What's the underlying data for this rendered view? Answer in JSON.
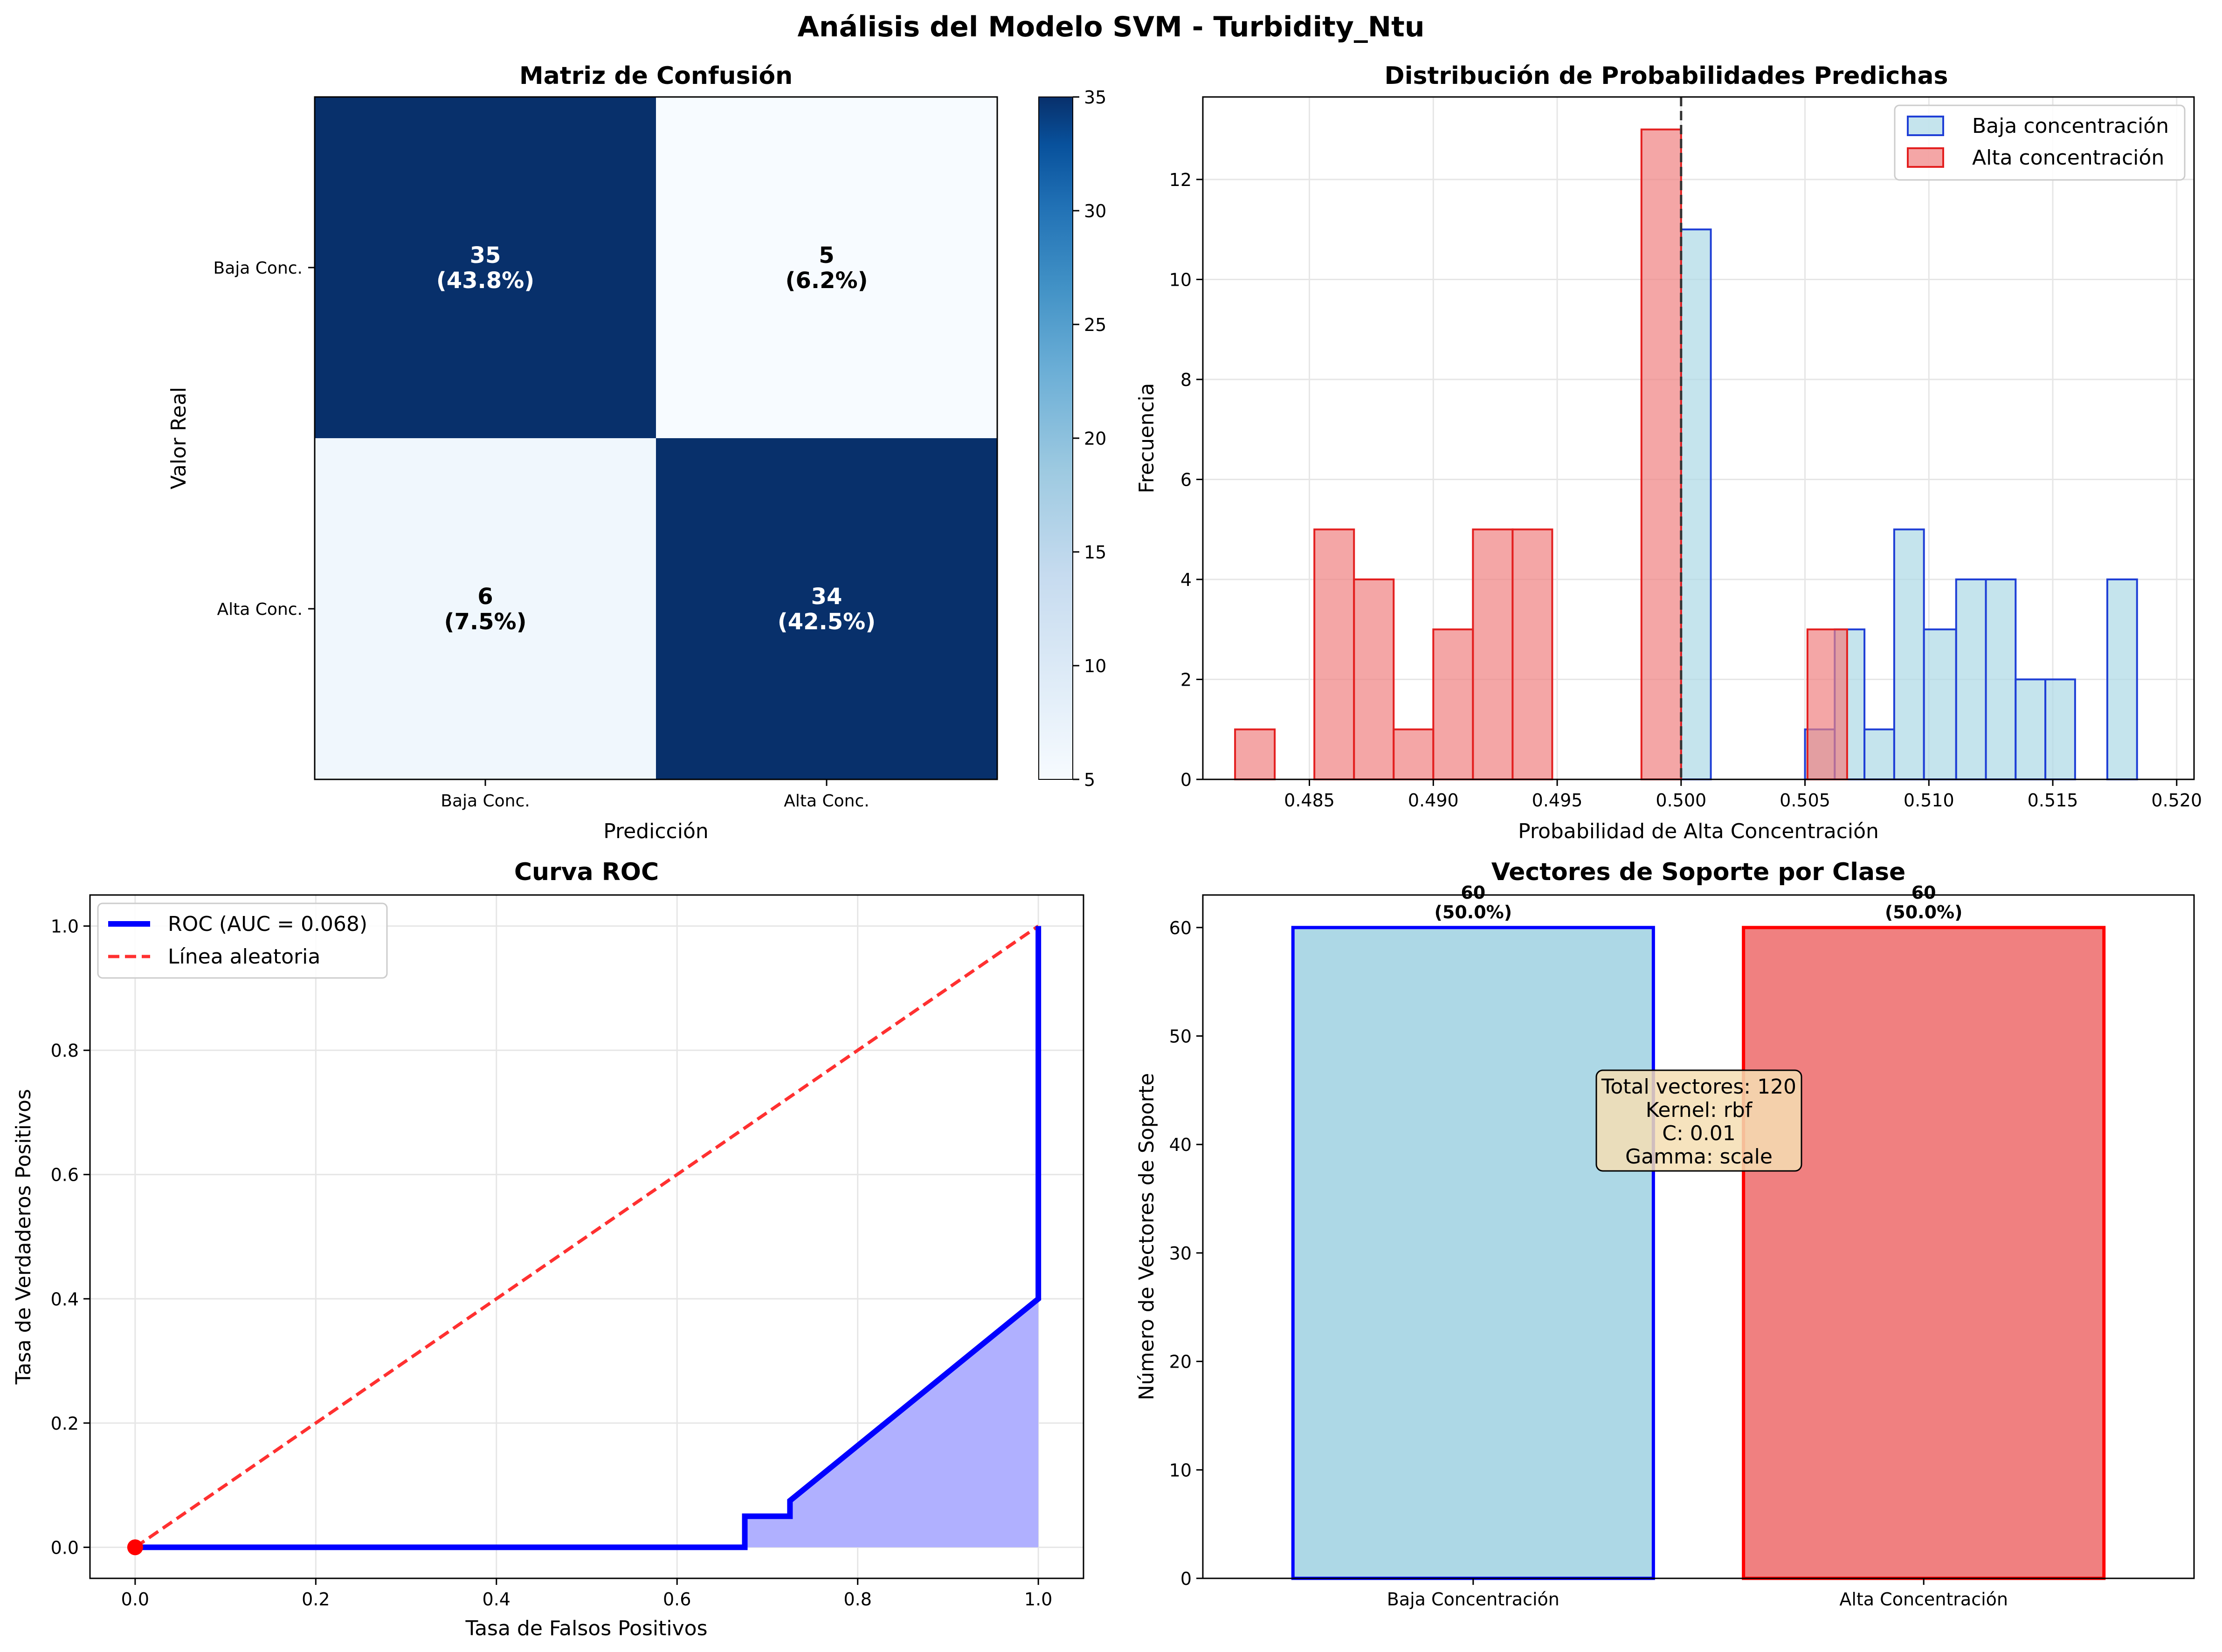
{
  "figure": {
    "title": "Análisis del Modelo SVM - Turbidity_Ntu"
  },
  "colors": {
    "confusion_dark": "#08306b",
    "confusion_light": "#f7fbff",
    "baja_fill": "#add8e6",
    "baja_edge": "#1f3fd6",
    "alta_fill": "#f08080",
    "alta_edge": "#e32020",
    "roc_line": "#0000ff",
    "roc_fill": "#b0b0ff",
    "random_line": "#ff3030"
  },
  "chart_data": [
    {
      "id": "confusion",
      "type": "heatmap",
      "title": "Matriz de Confusión",
      "xlabel": "Predicción",
      "ylabel": "Valor Real",
      "x_categories": [
        "Baja Conc.",
        "Alta Conc."
      ],
      "y_categories": [
        "Baja Conc.",
        "Alta Conc."
      ],
      "matrix": [
        [
          35,
          5
        ],
        [
          6,
          34
        ]
      ],
      "cell_labels": [
        [
          "35",
          "(43.8%)",
          "5",
          "(6.2%)"
        ],
        [
          "6",
          "(7.5%)",
          "34",
          "(42.5%)"
        ]
      ],
      "colorbar": {
        "min": 5,
        "max": 35,
        "ticks": [
          "5",
          "10",
          "15",
          "20",
          "25",
          "30",
          "35"
        ]
      }
    },
    {
      "id": "hist",
      "type": "bar",
      "title": "Distribución de Probabilidades Predichas",
      "xlabel": "Probabilidad de Alta Concentración",
      "ylabel": "Frecuencia",
      "xlim": [
        0.4807,
        0.5207
      ],
      "ylim": [
        0,
        13.65
      ],
      "xticks": [
        "0.485",
        "0.490",
        "0.495",
        "0.500",
        "0.505",
        "0.510",
        "0.515",
        "0.520"
      ],
      "yticks": [
        "0",
        "2",
        "4",
        "6",
        "8",
        "10",
        "12"
      ],
      "threshold": 0.5,
      "grid": true,
      "legend_position": "top-right",
      "series": [
        {
          "name": "Baja concentración",
          "bins": [
            {
              "x0": 0.5,
              "x1": 0.5012,
              "count": 11
            },
            {
              "x0": 0.505,
              "x1": 0.5062,
              "count": 1
            },
            {
              "x0": 0.5062,
              "x1": 0.5074,
              "count": 3
            },
            {
              "x0": 0.5074,
              "x1": 0.5086,
              "count": 1
            },
            {
              "x0": 0.5086,
              "x1": 0.5098,
              "count": 5
            },
            {
              "x0": 0.5098,
              "x1": 0.5111,
              "count": 3
            },
            {
              "x0": 0.5111,
              "x1": 0.5123,
              "count": 4
            },
            {
              "x0": 0.5123,
              "x1": 0.5135,
              "count": 4
            },
            {
              "x0": 0.5135,
              "x1": 0.5147,
              "count": 2
            },
            {
              "x0": 0.5147,
              "x1": 0.5159,
              "count": 2
            },
            {
              "x0": 0.5172,
              "x1": 0.5184,
              "count": 4
            }
          ]
        },
        {
          "name": "Alta concentración",
          "bins": [
            {
              "x0": 0.482,
              "x1": 0.4836,
              "count": 1
            },
            {
              "x0": 0.4852,
              "x1": 0.4868,
              "count": 5
            },
            {
              "x0": 0.4868,
              "x1": 0.4884,
              "count": 4
            },
            {
              "x0": 0.4884,
              "x1": 0.49,
              "count": 1
            },
            {
              "x0": 0.49,
              "x1": 0.4916,
              "count": 3
            },
            {
              "x0": 0.4916,
              "x1": 0.4932,
              "count": 5
            },
            {
              "x0": 0.4932,
              "x1": 0.4948,
              "count": 5
            },
            {
              "x0": 0.4984,
              "x1": 0.5,
              "count": 13
            },
            {
              "x0": 0.5051,
              "x1": 0.5067,
              "count": 3
            }
          ]
        }
      ]
    },
    {
      "id": "roc",
      "type": "line",
      "title": "Curva ROC",
      "xlabel": "Tasa de Falsos Positivos",
      "ylabel": "Tasa de Verdaderos Positivos",
      "xlim": [
        -0.05,
        1.05
      ],
      "ylim": [
        -0.05,
        1.05
      ],
      "xticks": [
        "0.0",
        "0.2",
        "0.4",
        "0.6",
        "0.8",
        "1.0"
      ],
      "yticks": [
        "0.0",
        "0.2",
        "0.4",
        "0.6",
        "0.8",
        "1.0"
      ],
      "grid": true,
      "legend_position": "top-left",
      "series": [
        {
          "name": "ROC (AUC = 0.068)",
          "points": [
            [
              0,
              0
            ],
            [
              0.675,
              0
            ],
            [
              0.675,
              0.05
            ],
            [
              0.725,
              0.05
            ],
            [
              0.725,
              0.075
            ],
            [
              1.0,
              0.4
            ],
            [
              1.0,
              1.0
            ]
          ]
        },
        {
          "name": "Línea aleatoria",
          "points": [
            [
              0,
              0
            ],
            [
              1,
              1
            ]
          ]
        }
      ],
      "marker": [
        0,
        0
      ]
    },
    {
      "id": "support",
      "type": "bar",
      "title": "Vectores de Soporte por Clase",
      "xlabel": "",
      "ylabel": "Número de Vectores de Soporte",
      "categories": [
        "Baja Concentración",
        "Alta Concentración"
      ],
      "values": [
        60,
        60
      ],
      "value_labels": [
        [
          "60",
          "(50.0%)"
        ],
        [
          "60",
          "(50.0%)"
        ]
      ],
      "ylim": [
        0,
        63
      ],
      "yticks": [
        "0",
        "10",
        "20",
        "30",
        "40",
        "50",
        "60"
      ],
      "info_box": [
        "Total vectores: 120",
        "Kernel: rbf",
        "C: 0.01",
        "Gamma: scale"
      ]
    }
  ]
}
